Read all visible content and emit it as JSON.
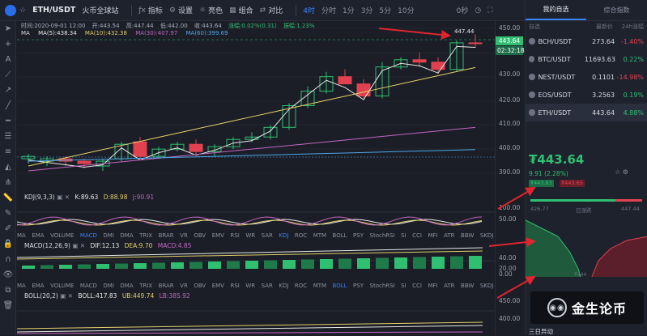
{
  "header": {
    "pair": "ETH/USDT",
    "exchange": "火币全球站",
    "tools": [
      {
        "icon": "chart-icon",
        "label": "指标"
      },
      {
        "icon": "gear-icon",
        "label": "设置"
      },
      {
        "icon": "bulb-icon",
        "label": "亮色"
      },
      {
        "icon": "grid-icon",
        "label": "组合"
      },
      {
        "icon": "compare-icon",
        "label": "对比"
      }
    ],
    "intervals": [
      "4时",
      "分时",
      "1分",
      "3分",
      "5分",
      "10分"
    ],
    "active_interval": "4时",
    "time_mode": "0秒"
  },
  "right_panel": {
    "tabs": [
      "我的自选",
      "综合指数"
    ],
    "headers": {
      "name": "自选",
      "price": "最新价",
      "change": "24h涨幅"
    },
    "watchlist": [
      {
        "name": "BCH/USDT",
        "price": "273.64",
        "change": "-1.40%",
        "dir": "dn"
      },
      {
        "name": "BTC/USDT",
        "price": "11693.63",
        "change": "0.22%",
        "dir": "up"
      },
      {
        "name": "NEST/USDT",
        "price": "0.1101",
        "change": "-14.98%",
        "dir": "dn"
      },
      {
        "name": "EOS/USDT",
        "price": "3.2563",
        "change": "0.19%",
        "dir": "up"
      },
      {
        "name": "ETH/USDT",
        "price": "443.64",
        "change": "4.88%",
        "dir": "up"
      }
    ],
    "big_price": "₮443.64",
    "change_line": "9.91 (2.28%)",
    "bid": "₮443.63",
    "ask": "₮443.65",
    "depth_left": "426.77",
    "depth_mid": "日涨跌",
    "depth_right": "447.44",
    "depth_bottom": "₮444",
    "watermark": "金生论币",
    "footer": "三日异动"
  },
  "info": {
    "time": "时间:2020-09-01 12:00",
    "open": "开:443.54",
    "high": "高:447.44",
    "low": "低:442.00",
    "close": "收:443.64",
    "change": "涨幅:0.02%(0.31)",
    "amp": "振幅:1.23%",
    "ma": "MA",
    "ma5": "MA(5):438.34",
    "ma10": "MA(10):432.38",
    "ma30": "MA(30):407.97",
    "ma60": "MA(60):399.69"
  },
  "axis": {
    "main": [
      "450.00",
      "440.00",
      "430.00",
      "420.00",
      "410.00",
      "400.00",
      "390.00"
    ],
    "kdj": [
      "100.00",
      "50.00",
      "0.00"
    ],
    "macd": [
      "40.00",
      "20.00",
      "0.00"
    ],
    "boll": [
      "450.00",
      "400.00"
    ],
    "current_price": "443.64",
    "countdown": "02:32:18",
    "peak": "447.44"
  },
  "indicators": {
    "tabs": [
      "MA",
      "EMA",
      "VOLUME",
      "MACD",
      "DMI",
      "DMA",
      "TRIX",
      "BRAR",
      "VR",
      "OBV",
      "EMV",
      "RSI",
      "WR",
      "SAR",
      "KDJ",
      "ROC",
      "MTM",
      "BOLL",
      "PSY",
      "StochRSI",
      "SI",
      "CCI",
      "MFI",
      "ATR",
      "BBW",
      "SKDJ",
      "BIAS"
    ],
    "kdj_label": "KDJ(9,3,3)",
    "kdj_k": "K:89.63",
    "kdj_d": "D:88.98",
    "kdj_j": "J:90.91",
    "macd_label": "MACD(12,26,9)",
    "macd_dif": "DIF:12.13",
    "macd_dea": "DEA:9.70",
    "macd_macd": "MACD:4.85",
    "boll_label": "BOLL(20,2)",
    "boll_mid": "BOLL:417.83",
    "boll_ub": "UB:449.74",
    "boll_lb": "LB:385.92"
  },
  "colors": {
    "up": "#2fbf71",
    "down": "#e2424f",
    "accent": "#3b82f6"
  }
}
